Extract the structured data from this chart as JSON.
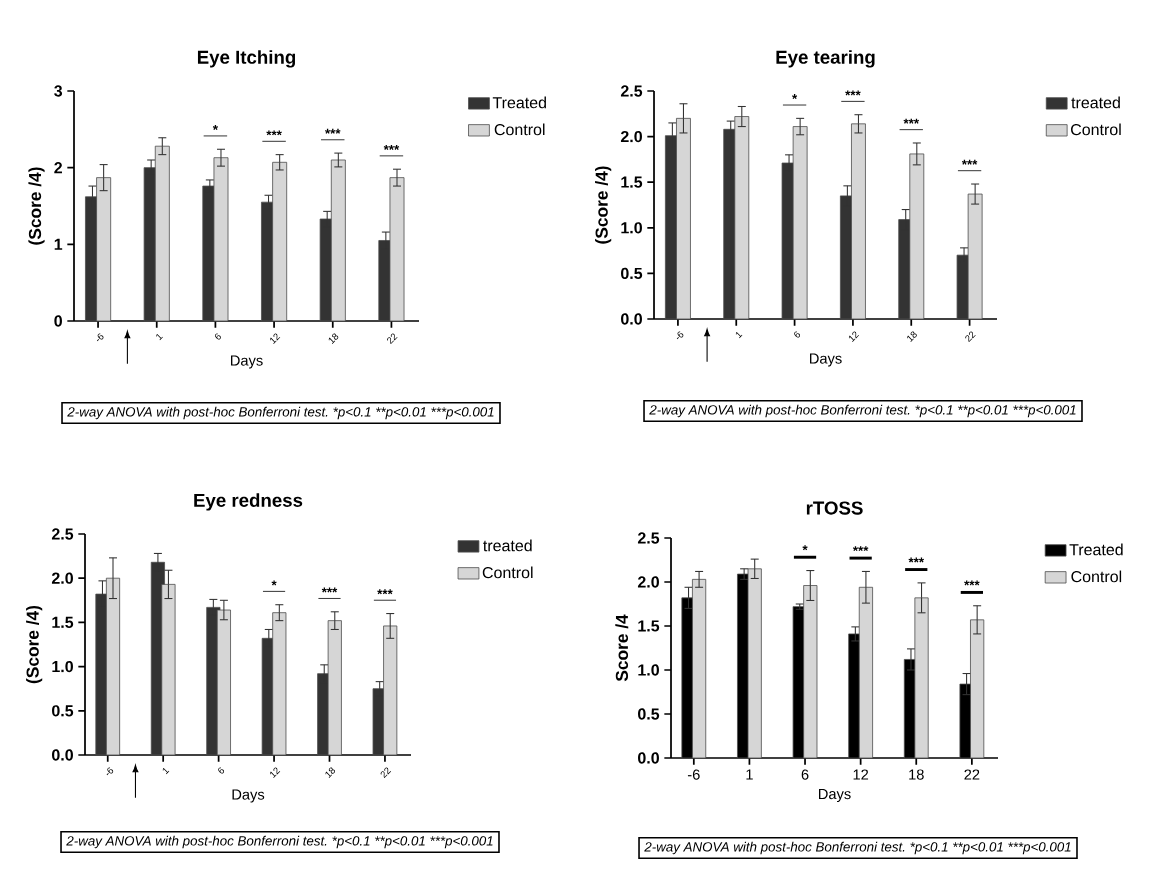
{
  "chart_data": [
    {
      "type": "bar",
      "title": "Eye Itching",
      "xlabel": "Days",
      "ylabel": "(Score /4)",
      "categories": [
        "-6",
        "1",
        "6",
        "12",
        "18",
        "22"
      ],
      "series": [
        {
          "name": "Treated",
          "color": "#333333",
          "values": [
            1.62,
            2.0,
            1.76,
            1.55,
            1.33,
            1.05
          ],
          "errors": [
            0.14,
            0.1,
            0.08,
            0.09,
            0.1,
            0.11
          ]
        },
        {
          "name": "Control",
          "color": "#d6d6d6",
          "values": [
            1.87,
            2.28,
            2.13,
            2.07,
            2.1,
            1.87
          ],
          "errors": [
            0.17,
            0.11,
            0.11,
            0.1,
            0.09,
            0.11
          ]
        }
      ],
      "ylim": [
        0,
        3
      ],
      "yticks": [
        0,
        1,
        2,
        3
      ],
      "legend": "top right",
      "annotations": [
        "*",
        "***",
        "***",
        "***",
        "2-way ANOVA with post-hoc Bonferroni test.",
        "*p<0.1",
        "**p<0.01",
        "***p<0.001"
      ]
    },
    {
      "type": "bar",
      "title": "Eye tearing",
      "xlabel": "Days",
      "ylabel": "(Score /4)",
      "categories": [
        "-6",
        "1",
        "6",
        "12",
        "18",
        "22"
      ],
      "series": [
        {
          "name": "treated",
          "color": "#333333",
          "values": [
            2.01,
            2.08,
            1.71,
            1.35,
            1.09,
            0.7
          ],
          "errors": [
            0.14,
            0.09,
            0.09,
            0.11,
            0.11,
            0.08
          ]
        },
        {
          "name": "Control",
          "color": "#d6d6d6",
          "values": [
            2.2,
            2.22,
            2.11,
            2.14,
            1.81,
            1.37
          ],
          "errors": [
            0.16,
            0.11,
            0.09,
            0.1,
            0.12,
            0.11
          ]
        }
      ],
      "ylim": [
        0,
        2.5
      ],
      "yticks": [
        {
          "value": 0,
          "label": "0.0"
        },
        {
          "value": 0.5,
          "label": "0.5"
        },
        {
          "value": 1,
          "label": "1.0"
        },
        {
          "value": 1.5,
          "label": "1.5"
        },
        {
          "value": 2,
          "label": "2.0"
        },
        {
          "value": 2.5,
          "label": "2.5"
        }
      ],
      "legend": "top right",
      "annotations": [
        "*",
        "***",
        "***",
        "***",
        "2-way ANOVA with post-hoc Bonferroni test.",
        "*p<0.1",
        "**p<0.01",
        "***p<0.001"
      ]
    },
    {
      "type": "bar",
      "title": "Eye redness",
      "xlabel": "Days",
      "ylabel": "(Score /4)",
      "categories": [
        "-6",
        "1",
        "6",
        "12",
        "18",
        "22"
      ],
      "series": [
        {
          "name": "treated",
          "color": "#333333",
          "values": [
            1.82,
            2.18,
            1.67,
            1.32,
            0.92,
            0.75
          ],
          "errors": [
            0.15,
            0.1,
            0.09,
            0.1,
            0.1,
            0.08
          ]
        },
        {
          "name": "Control",
          "color": "#d6d6d6",
          "values": [
            2.0,
            1.93,
            1.64,
            1.61,
            1.52,
            1.46
          ],
          "errors": [
            0.23,
            0.16,
            0.11,
            0.09,
            0.1,
            0.14
          ]
        }
      ],
      "ylim": [
        0,
        2.5
      ],
      "yticks": [
        {
          "value": 0,
          "label": "0.0"
        },
        {
          "value": 0.5,
          "label": "0.5"
        },
        {
          "value": 1,
          "label": "1.0"
        },
        {
          "value": 1.5,
          "label": "1.5"
        },
        {
          "value": 2,
          "label": "2.0"
        },
        {
          "value": 2.5,
          "label": "2.5"
        }
      ],
      "legend": "top right",
      "annotations": [
        "*",
        "***",
        "***",
        "2-way ANOVA with post-hoc Bonferroni test.",
        "*p<0.1",
        "**p<0.01",
        "***p<0.001"
      ]
    },
    {
      "type": "bar",
      "title": "rTOSS",
      "xlabel": "Days",
      "ylabel": "Score /4",
      "categories": [
        "-6",
        "1",
        "6",
        "12",
        "18",
        "22"
      ],
      "series": [
        {
          "name": "Treated",
          "color": "#000000",
          "values": [
            1.82,
            2.09,
            1.72,
            1.41,
            1.12,
            0.84
          ],
          "errors": [
            0.12,
            0.06,
            0.03,
            0.08,
            0.12,
            0.12
          ]
        },
        {
          "name": "Control",
          "color": "#d6d6d6",
          "values": [
            2.03,
            2.15,
            1.96,
            1.94,
            1.82,
            1.57
          ],
          "errors": [
            0.09,
            0.11,
            0.17,
            0.18,
            0.17,
            0.16
          ]
        }
      ],
      "ylim": [
        0,
        2.5
      ],
      "yticks": [
        {
          "value": 0,
          "label": "0.0"
        },
        {
          "value": 0.5,
          "label": "0.5"
        },
        {
          "value": 1,
          "label": "1.0"
        },
        {
          "value": 1.5,
          "label": "1.5"
        },
        {
          "value": 2,
          "label": "2.0"
        },
        {
          "value": 2.5,
          "label": "2.5"
        }
      ],
      "legend": "top right",
      "annotations": [
        "*",
        "***",
        "***",
        "***",
        "2-way ANOVA with post-hoc Bonferroni test.",
        "*p<0.1",
        "**p<0.01",
        "***p<0.001"
      ]
    }
  ]
}
